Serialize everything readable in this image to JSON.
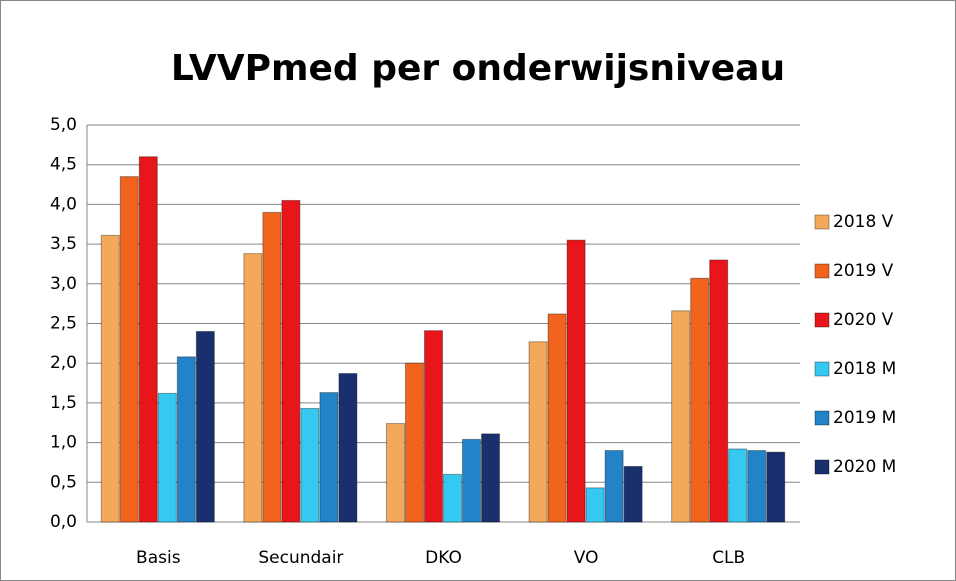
{
  "chart_data": {
    "type": "bar",
    "title": "LVVPmed per onderwijsniveau",
    "categories": [
      "Basis",
      "Secundair",
      "DKO",
      "VO",
      "CLB"
    ],
    "series": [
      {
        "name": "2018 V",
        "color": "#f4a95a",
        "values": [
          3.61,
          3.38,
          1.24,
          2.27,
          2.66
        ]
      },
      {
        "name": "2019 V",
        "color": "#f0641e",
        "values": [
          4.35,
          3.9,
          2.0,
          2.62,
          3.07
        ]
      },
      {
        "name": "2020 V",
        "color": "#e8161a",
        "values": [
          4.6,
          4.05,
          2.41,
          3.55,
          3.3
        ]
      },
      {
        "name": "2018 M",
        "color": "#35c8f0",
        "values": [
          1.62,
          1.43,
          0.6,
          0.43,
          0.92
        ]
      },
      {
        "name": "2019 M",
        "color": "#2383c8",
        "values": [
          2.08,
          1.63,
          1.04,
          0.9,
          0.9
        ]
      },
      {
        "name": "2020 M",
        "color": "#1a2f6e",
        "values": [
          2.4,
          1.87,
          1.11,
          0.7,
          0.88
        ]
      }
    ],
    "ylim": [
      0,
      5
    ],
    "yticks": [
      {
        "value": 0,
        "label": "0,0"
      },
      {
        "value": 0.5,
        "label": "0,5"
      },
      {
        "value": 1,
        "label": "1,0"
      },
      {
        "value": 1.5,
        "label": "1,5"
      },
      {
        "value": 2,
        "label": "2,0"
      },
      {
        "value": 2.5,
        "label": "2,5"
      },
      {
        "value": 3,
        "label": "3,0"
      },
      {
        "value": 3.5,
        "label": "3,5"
      },
      {
        "value": 4,
        "label": "4,0"
      },
      {
        "value": 4.5,
        "label": "4,5"
      },
      {
        "value": 5,
        "label": "5,0"
      }
    ],
    "grid": true,
    "legend": "right"
  }
}
